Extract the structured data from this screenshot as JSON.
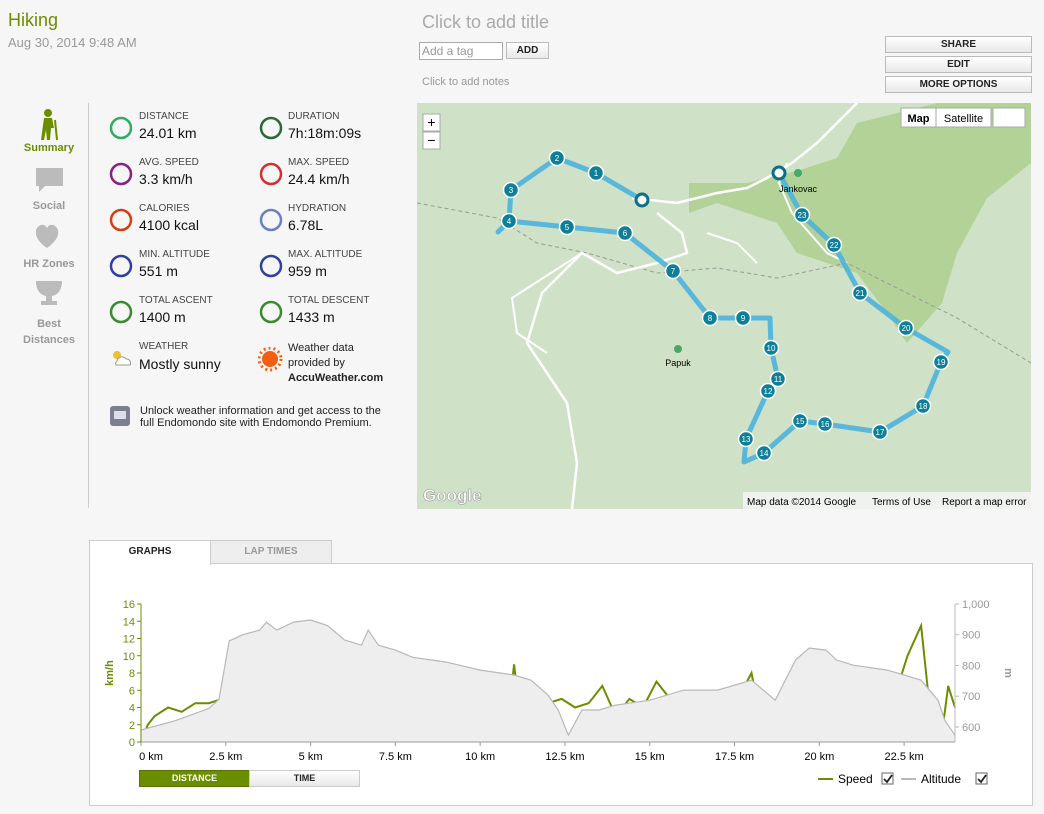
{
  "header": {
    "activity": "Hiking",
    "date": "Aug 30, 2014 9:48 AM",
    "title_placeholder": "Click to add title",
    "tag_placeholder": "Add a tag",
    "add_button": "ADD",
    "notes_placeholder": "Click to add notes"
  },
  "actions": [
    "SHARE",
    "EDIT",
    "MORE OPTIONS"
  ],
  "nav": [
    "Summary",
    "Social",
    "HR Zones",
    "Best Distances"
  ],
  "stats": [
    {
      "label": "DISTANCE",
      "value": "24.01 km"
    },
    {
      "label": "DURATION",
      "value": "7h:18m:09s"
    },
    {
      "label": "AVG. SPEED",
      "value": "3.3 km/h"
    },
    {
      "label": "MAX. SPEED",
      "value": "24.4 km/h"
    },
    {
      "label": "CALORIES",
      "value": "4100 kcal"
    },
    {
      "label": "HYDRATION",
      "value": "6.78L"
    },
    {
      "label": "MIN. ALTITUDE",
      "value": "551 m"
    },
    {
      "label": "MAX. ALTITUDE",
      "value": "959 m"
    },
    {
      "label": "TOTAL ASCENT",
      "value": "1400 m"
    },
    {
      "label": "TOTAL DESCENT",
      "value": "1433 m"
    }
  ],
  "weather": {
    "label": "WEATHER",
    "value": "Mostly sunny",
    "credit": "Weather data provided by",
    "provider": "AccuWeather.com"
  },
  "promo": "Unlock weather information and get access to the full Endomondo site with Endomondo Premium.",
  "map": {
    "zoom_in": "+",
    "zoom_out": "−",
    "types": [
      "Map",
      "Satellite"
    ],
    "places": [
      "Papuk",
      "Jankovac"
    ],
    "markers": [
      "1",
      "2",
      "3",
      "4",
      "5",
      "6",
      "7",
      "8",
      "9",
      "10",
      "11",
      "12",
      "13",
      "14",
      "15",
      "16",
      "17",
      "18",
      "19",
      "20",
      "21",
      "22",
      "23"
    ],
    "logo": "Google",
    "attribution": "Map data ©2014 Google",
    "terms": "Terms of Use",
    "report": "Report a map error"
  },
  "tabs": [
    "GRAPHS",
    "LAP TIMES"
  ],
  "chart_data": {
    "type": "line",
    "ylabel": "km/h",
    "y2label": "m",
    "xlim": [
      0,
      24
    ],
    "xticks": [
      {
        "value": 0,
        "label": "0 km"
      },
      {
        "value": 2.5,
        "label": "2.5 km"
      },
      {
        "value": 5,
        "label": "5 km"
      },
      {
        "value": 7.5,
        "label": "7.5 km"
      },
      {
        "value": 10,
        "label": "10 km"
      },
      {
        "value": 12.5,
        "label": "12.5 km"
      },
      {
        "value": 15,
        "label": "15 km"
      },
      {
        "value": 17.5,
        "label": "17.5 km"
      },
      {
        "value": 20,
        "label": "20 km"
      },
      {
        "value": 22.5,
        "label": "22.5 km"
      }
    ],
    "ylim": [
      0,
      16
    ],
    "yticks": [
      0,
      2,
      4,
      6,
      8,
      10,
      12,
      14,
      16
    ],
    "y2lim": [
      551,
      1000
    ],
    "y2ticks": [
      600,
      700,
      800,
      900,
      {
        "value": 1000,
        "label": "1,000"
      }
    ],
    "grid": false,
    "legend": "bottom-right",
    "series": [
      {
        "name": "Speed",
        "color": "#6b8e00",
        "axis": "y",
        "x": [
          0,
          0.2,
          0.4,
          0.8,
          1.2,
          1.6,
          2,
          2.4,
          2.8,
          3.2,
          3.6,
          3.8,
          4,
          4.4,
          4.8,
          5.2,
          5.6,
          6,
          6.4,
          6.8,
          7.2,
          7.6,
          8,
          8.1,
          8.4,
          8.8,
          9.2,
          9.6,
          10,
          10.4,
          10.8,
          11,
          11.2,
          11.6,
          12,
          12.4,
          12.8,
          13.2,
          13.6,
          14,
          14.4,
          14.8,
          15.2,
          15.6,
          16,
          16.4,
          16.8,
          17.2,
          17.6,
          18,
          18.2,
          18.6,
          19,
          19.4,
          19.8,
          20.2,
          20.6,
          21,
          21.4,
          21.8,
          22.2,
          22.6,
          23,
          23.2,
          23.4,
          23.6,
          23.8,
          24
        ],
        "values": [
          0,
          2,
          3,
          4,
          3.5,
          4.5,
          4.5,
          5,
          4.8,
          5,
          4.5,
          5.5,
          1.5,
          4,
          5,
          5,
          4.5,
          5.5,
          5,
          5,
          4,
          5,
          3,
          0.5,
          3,
          4,
          2,
          4,
          7.5,
          4,
          2,
          9,
          2,
          5,
          4.5,
          5,
          4,
          4.5,
          6.5,
          3,
          5,
          4,
          7,
          5,
          4,
          5,
          4.5,
          4,
          5,
          8,
          4,
          4,
          3,
          6,
          4.5,
          5,
          4.5,
          5,
          4.5,
          4.5,
          5,
          10,
          13.5,
          6,
          3,
          0.5,
          6.5,
          4
        ]
      },
      {
        "name": "Altitude",
        "color": "#c8c8c8",
        "axis": "y2",
        "x": [
          0,
          1,
          2,
          2.3,
          2.6,
          3,
          3.5,
          3.7,
          4,
          4.5,
          5,
          5.5,
          6,
          6.5,
          6.7,
          7,
          7.5,
          8,
          9,
          10,
          11,
          11.5,
          12,
          12.3,
          12.6,
          13,
          13.5,
          14,
          15,
          16,
          17,
          18,
          18.7,
          19.3,
          19.7,
          20.2,
          20.5,
          21,
          22,
          22.5,
          23,
          23.5,
          23.7,
          24
        ],
        "values": [
          590,
          620,
          660,
          690,
          880,
          900,
          915,
          941,
          915,
          941,
          948,
          930,
          883,
          866,
          915,
          866,
          850,
          827,
          811,
          785,
          769,
          752,
          704,
          655,
          573,
          655,
          655,
          671,
          687,
          720,
          720,
          752,
          687,
          818,
          857,
          850,
          818,
          801,
          785,
          769,
          752,
          687,
          622,
          573
        ]
      }
    ]
  },
  "x_mode": [
    "DISTANCE",
    "TIME"
  ]
}
